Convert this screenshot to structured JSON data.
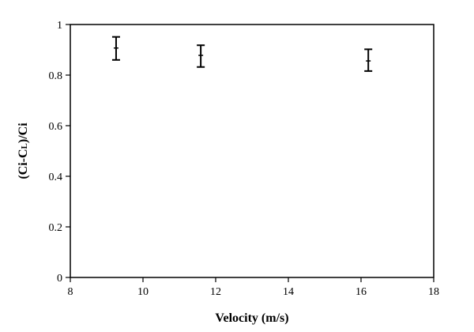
{
  "chart_data": {
    "type": "scatter",
    "title": "",
    "xlabel": "Velocity (m/s)",
    "ylabel": {
      "main": "(Ci-C",
      "sub": "L",
      "tail": ")/Ci"
    },
    "xlim": [
      8,
      18
    ],
    "ylim": [
      0,
      1
    ],
    "xticks": [
      8,
      10,
      12,
      14,
      16,
      18
    ],
    "yticks": [
      0,
      0.2,
      0.4,
      0.6,
      0.8,
      1
    ],
    "xtick_labels": [
      "8",
      "10",
      "12",
      "14",
      "16",
      "18"
    ],
    "ytick_labels": [
      "0",
      "0.2",
      "0.4",
      "0.6",
      "0.8",
      "1"
    ],
    "grid": false,
    "error_bars": true,
    "points": [
      {
        "x": 9.26,
        "y": 0.907,
        "ylow": 0.86,
        "yhigh": 0.951
      },
      {
        "x": 11.59,
        "y": 0.878,
        "ylow": 0.832,
        "yhigh": 0.918
      },
      {
        "x": 16.2,
        "y": 0.856,
        "ylow": 0.816,
        "yhigh": 0.902
      }
    ],
    "color": "#000000"
  }
}
